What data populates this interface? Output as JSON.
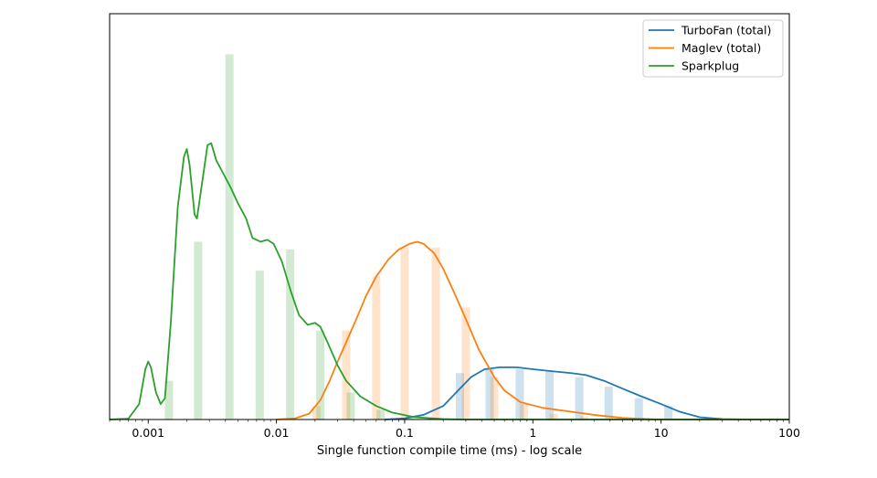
{
  "chart_data": {
    "type": "histogram-kde",
    "title": "",
    "xlabel": "Single function compile time (ms) - log scale",
    "ylabel": "",
    "xscale": "log",
    "xlim": [
      0.0005,
      100
    ],
    "ylim": [
      0,
      1.05
    ],
    "yticks_visible": false,
    "xticks": [
      {
        "value": 0.001,
        "label": "0.001"
      },
      {
        "value": 0.01,
        "label": "0.01"
      },
      {
        "value": 0.1,
        "label": "0.1"
      },
      {
        "value": 1,
        "label": "1"
      },
      {
        "value": 10,
        "label": "10"
      },
      {
        "value": 100,
        "label": "100"
      }
    ],
    "legend": {
      "position": "top-right",
      "entries": [
        "TurboFan (total)",
        "Maglev (total)",
        "Sparkplug"
      ]
    },
    "series": [
      {
        "name": "TurboFan (total)",
        "color": "#1f77b4",
        "bars": [
          {
            "x": 0.27,
            "h": 0.12
          },
          {
            "x": 0.46,
            "h": 0.13
          },
          {
            "x": 0.79,
            "h": 0.13
          },
          {
            "x": 1.35,
            "h": 0.125
          },
          {
            "x": 2.3,
            "h": 0.11
          },
          {
            "x": 3.9,
            "h": 0.085
          },
          {
            "x": 6.7,
            "h": 0.055
          },
          {
            "x": 11.4,
            "h": 0.035
          }
        ],
        "kde": [
          [
            0.07,
            0
          ],
          [
            0.1,
            0.003
          ],
          [
            0.14,
            0.012
          ],
          [
            0.2,
            0.035
          ],
          [
            0.27,
            0.08
          ],
          [
            0.33,
            0.11
          ],
          [
            0.42,
            0.13
          ],
          [
            0.55,
            0.135
          ],
          [
            0.75,
            0.135
          ],
          [
            1.0,
            0.13
          ],
          [
            1.4,
            0.125
          ],
          [
            2.0,
            0.12
          ],
          [
            2.6,
            0.115
          ],
          [
            3.6,
            0.1
          ],
          [
            5.0,
            0.08
          ],
          [
            7.0,
            0.06
          ],
          [
            10.0,
            0.04
          ],
          [
            14.0,
            0.02
          ],
          [
            20.0,
            0.006
          ],
          [
            30.0,
            0.001
          ],
          [
            50.0,
            0
          ],
          [
            100,
            0
          ]
        ]
      },
      {
        "name": "Maglev (total)",
        "color": "#ff7f0e",
        "bars": [
          {
            "x": 0.0205,
            "h": 0.035
          },
          {
            "x": 0.035,
            "h": 0.23
          },
          {
            "x": 0.06,
            "h": 0.37
          },
          {
            "x": 0.1,
            "h": 0.445
          },
          {
            "x": 0.175,
            "h": 0.445
          },
          {
            "x": 0.3,
            "h": 0.29
          },
          {
            "x": 0.5,
            "h": 0.11
          },
          {
            "x": 0.85,
            "h": 0.04
          },
          {
            "x": 1.45,
            "h": 0.015
          },
          {
            "x": 2.5,
            "h": 0.008
          }
        ],
        "kde": [
          [
            0.01,
            0
          ],
          [
            0.014,
            0.003
          ],
          [
            0.018,
            0.015
          ],
          [
            0.022,
            0.05
          ],
          [
            0.026,
            0.1
          ],
          [
            0.03,
            0.15
          ],
          [
            0.035,
            0.2
          ],
          [
            0.042,
            0.26
          ],
          [
            0.05,
            0.32
          ],
          [
            0.06,
            0.37
          ],
          [
            0.075,
            0.415
          ],
          [
            0.09,
            0.44
          ],
          [
            0.11,
            0.455
          ],
          [
            0.125,
            0.46
          ],
          [
            0.14,
            0.455
          ],
          [
            0.17,
            0.43
          ],
          [
            0.2,
            0.39
          ],
          [
            0.25,
            0.32
          ],
          [
            0.3,
            0.26
          ],
          [
            0.38,
            0.18
          ],
          [
            0.5,
            0.11
          ],
          [
            0.6,
            0.075
          ],
          [
            0.8,
            0.045
          ],
          [
            1.2,
            0.03
          ],
          [
            2.0,
            0.02
          ],
          [
            3.0,
            0.012
          ],
          [
            5.0,
            0.004
          ],
          [
            8.0,
            0.001
          ],
          [
            10.0,
            0
          ],
          [
            100,
            0
          ]
        ]
      },
      {
        "name": "Sparkplug",
        "color": "#2ca02c",
        "bars": [
          {
            "x": 0.00145,
            "h": 0.1
          },
          {
            "x": 0.00245,
            "h": 0.46
          },
          {
            "x": 0.0043,
            "h": 0.945
          },
          {
            "x": 0.0074,
            "h": 0.385
          },
          {
            "x": 0.0128,
            "h": 0.44
          },
          {
            "x": 0.022,
            "h": 0.23
          },
          {
            "x": 0.038,
            "h": 0.07
          },
          {
            "x": 0.065,
            "h": 0.025
          },
          {
            "x": 0.11,
            "h": 0.008
          }
        ],
        "kde": [
          [
            0.0005,
            0
          ],
          [
            0.0007,
            0.002
          ],
          [
            0.00085,
            0.04
          ],
          [
            0.00095,
            0.13
          ],
          [
            0.001,
            0.15
          ],
          [
            0.00105,
            0.135
          ],
          [
            0.00115,
            0.07
          ],
          [
            0.00125,
            0.04
          ],
          [
            0.00135,
            0.055
          ],
          [
            0.0015,
            0.25
          ],
          [
            0.0017,
            0.55
          ],
          [
            0.0019,
            0.68
          ],
          [
            0.002,
            0.7
          ],
          [
            0.0021,
            0.66
          ],
          [
            0.0023,
            0.53
          ],
          [
            0.0024,
            0.52
          ],
          [
            0.0026,
            0.6
          ],
          [
            0.0029,
            0.71
          ],
          [
            0.0031,
            0.715
          ],
          [
            0.0034,
            0.67
          ],
          [
            0.0038,
            0.64
          ],
          [
            0.0044,
            0.6
          ],
          [
            0.005,
            0.56
          ],
          [
            0.0058,
            0.52
          ],
          [
            0.0065,
            0.47
          ],
          [
            0.0075,
            0.46
          ],
          [
            0.0085,
            0.465
          ],
          [
            0.0095,
            0.455
          ],
          [
            0.011,
            0.41
          ],
          [
            0.013,
            0.33
          ],
          [
            0.015,
            0.27
          ],
          [
            0.0175,
            0.245
          ],
          [
            0.02,
            0.25
          ],
          [
            0.022,
            0.24
          ],
          [
            0.025,
            0.2
          ],
          [
            0.03,
            0.14
          ],
          [
            0.035,
            0.1
          ],
          [
            0.045,
            0.06
          ],
          [
            0.06,
            0.035
          ],
          [
            0.08,
            0.018
          ],
          [
            0.12,
            0.006
          ],
          [
            0.2,
            0.001
          ],
          [
            0.3,
            0
          ],
          [
            100,
            0
          ]
        ]
      }
    ]
  }
}
